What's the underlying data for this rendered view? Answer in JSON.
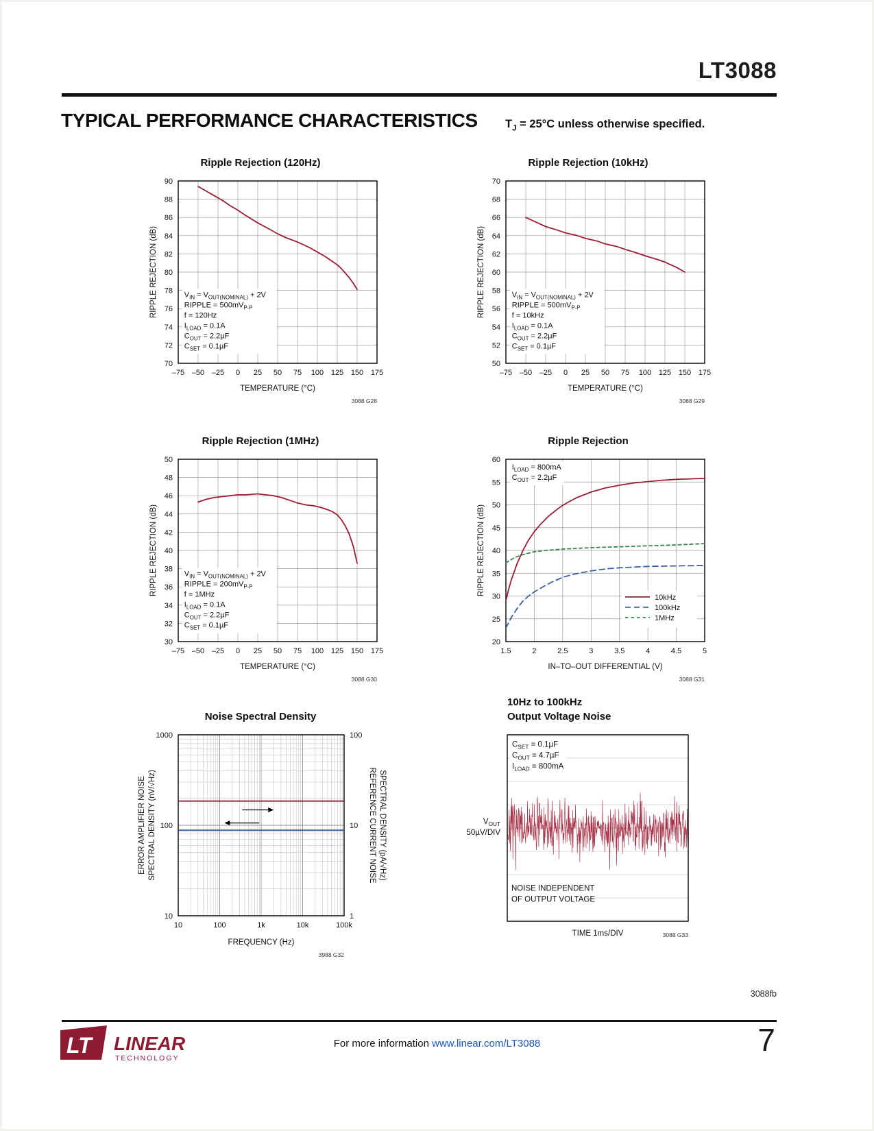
{
  "page": {
    "part_number": "LT3088",
    "section_title": "TYPICAL PERFORMANCE CHARACTERISTICS",
    "condition": "T_{J} = 25°C unless otherwise specified.",
    "doc_code": "3088fb",
    "page_number": "7",
    "footer_info_prefix": "For more information ",
    "footer_link": "www.linear.com/LT3088",
    "logo": {
      "mark": "LT",
      "brand": "LINEAR",
      "sub": "TECHNOLOGY",
      "color": "#8e1b32"
    }
  },
  "colors": {
    "curve_red": "#9d1b31",
    "curve_blue": "#3a5fa8",
    "curve_green": "#398449",
    "grid": "#9a9a9a",
    "link_blue": "#1558c0"
  },
  "chart_data": [
    {
      "type": "line",
      "id": "3088 G28",
      "title": "Ripple Rejection (120Hz)",
      "xlabel": "TEMPERATURE (°C)",
      "ylabel": "RIPPLE REJECTION (dB)",
      "xlim": [
        -75,
        175
      ],
      "ylim": [
        70,
        90
      ],
      "xticks": [
        -75,
        -50,
        -25,
        0,
        25,
        50,
        75,
        100,
        125,
        150,
        175
      ],
      "yticks": [
        70,
        72,
        74,
        76,
        78,
        80,
        82,
        84,
        86,
        88,
        90
      ],
      "annotation": {
        "fx": 0.02,
        "fy": 0.595,
        "lines": [
          "V_{IN} = V_{OUT(NOMINAL)} + 2V",
          "RIPPLE = 500mV_{P-P}",
          "f = 120Hz",
          "I_{LOAD} = 0.1A",
          "C_{OUT} = 2.2µF",
          "C_{SET} = 0.1µF"
        ]
      },
      "series": [
        {
          "name": "ripple rejection",
          "color": "#9d1b31",
          "dash": "",
          "points": [
            [
              -50,
              89.4
            ],
            [
              -40,
              88.9
            ],
            [
              -30,
              88.4
            ],
            [
              -20,
              87.9
            ],
            [
              -10,
              87.3
            ],
            [
              0,
              86.8
            ],
            [
              10,
              86.2
            ],
            [
              25,
              85.4
            ],
            [
              40,
              84.7
            ],
            [
              50,
              84.2
            ],
            [
              60,
              83.8
            ],
            [
              75,
              83.3
            ],
            [
              90,
              82.7
            ],
            [
              100,
              82.2
            ],
            [
              110,
              81.7
            ],
            [
              120,
              81.1
            ],
            [
              125,
              80.8
            ],
            [
              130,
              80.4
            ],
            [
              135,
              79.9
            ],
            [
              140,
              79.4
            ],
            [
              145,
              78.8
            ],
            [
              150,
              78.1
            ]
          ]
        }
      ]
    },
    {
      "type": "line",
      "id": "3088 G29",
      "title": "Ripple Rejection (10kHz)",
      "xlabel": "TEMPERATURE (°C)",
      "ylabel": "RIPPLE REJECTION (dB)",
      "xlim": [
        -75,
        175
      ],
      "ylim": [
        50,
        70
      ],
      "xticks": [
        -75,
        -50,
        -25,
        0,
        25,
        50,
        75,
        100,
        125,
        150,
        175
      ],
      "yticks": [
        50,
        52,
        54,
        56,
        58,
        60,
        62,
        64,
        66,
        68,
        70
      ],
      "annotation": {
        "fx": 0.02,
        "fy": 0.595,
        "lines": [
          "V_{IN} = V_{OUT(NOMINAL)} + 2V",
          "RIPPLE = 500mV_{P-P}",
          "f = 10kHz",
          "I_{LOAD} = 0.1A",
          "C_{OUT} = 2.2µF",
          "C_{SET} = 0.1µF"
        ]
      },
      "series": [
        {
          "name": "ripple rejection",
          "color": "#9d1b31",
          "dash": "",
          "points": [
            [
              -50,
              66.0
            ],
            [
              -35,
              65.4
            ],
            [
              -25,
              65.0
            ],
            [
              -10,
              64.6
            ],
            [
              0,
              64.3
            ],
            [
              15,
              64.0
            ],
            [
              25,
              63.7
            ],
            [
              40,
              63.4
            ],
            [
              50,
              63.1
            ],
            [
              65,
              62.8
            ],
            [
              75,
              62.5
            ],
            [
              90,
              62.1
            ],
            [
              100,
              61.8
            ],
            [
              115,
              61.4
            ],
            [
              125,
              61.1
            ],
            [
              140,
              60.5
            ],
            [
              150,
              60.0
            ]
          ]
        }
      ]
    },
    {
      "type": "line",
      "id": "3088 G30",
      "title": "Ripple Rejection (1MHz)",
      "xlabel": "TEMPERATURE (°C)",
      "ylabel": "RIPPLE REJECTION (dB)",
      "xlim": [
        -75,
        175
      ],
      "ylim": [
        30,
        50
      ],
      "xticks": [
        -75,
        -50,
        -25,
        0,
        25,
        50,
        75,
        100,
        125,
        150,
        175
      ],
      "yticks": [
        30,
        32,
        34,
        36,
        38,
        40,
        42,
        44,
        46,
        48,
        50
      ],
      "annotation": {
        "fx": 0.02,
        "fy": 0.6,
        "lines": [
          "V_{IN} = V_{OUT(NOMINAL)} + 2V",
          "RIPPLE = 200mV_{P-P}",
          "f = 1MHz",
          "I_{LOAD} = 0.1A",
          "C_{OUT} = 2.2µF",
          "C_{SET} = 0.1µF"
        ]
      },
      "series": [
        {
          "name": "ripple rejection",
          "color": "#9d1b31",
          "dash": "",
          "points": [
            [
              -50,
              45.3
            ],
            [
              -40,
              45.6
            ],
            [
              -30,
              45.8
            ],
            [
              -20,
              45.9
            ],
            [
              -10,
              46.0
            ],
            [
              0,
              46.1
            ],
            [
              10,
              46.1
            ],
            [
              25,
              46.2
            ],
            [
              35,
              46.1
            ],
            [
              45,
              46.0
            ],
            [
              55,
              45.8
            ],
            [
              65,
              45.5
            ],
            [
              75,
              45.2
            ],
            [
              85,
              45.0
            ],
            [
              95,
              44.9
            ],
            [
              105,
              44.7
            ],
            [
              115,
              44.4
            ],
            [
              120,
              44.2
            ],
            [
              125,
              43.9
            ],
            [
              130,
              43.4
            ],
            [
              135,
              42.7
            ],
            [
              140,
              41.8
            ],
            [
              145,
              40.5
            ],
            [
              150,
              38.6
            ]
          ]
        }
      ]
    },
    {
      "type": "line",
      "id": "3088 G31",
      "title": "Ripple Rejection",
      "xlabel": "IN–TO–OUT DIFFERENTIAL (V)",
      "ylabel": "RIPPLE REJECTION (dB)",
      "xlim": [
        1.5,
        5
      ],
      "ylim": [
        20,
        60
      ],
      "xticks": [
        1.5,
        2,
        2.5,
        3,
        3.5,
        4,
        4.5,
        5
      ],
      "yticks": [
        20,
        25,
        30,
        35,
        40,
        45,
        50,
        55,
        60
      ],
      "annotation": {
        "fx": 0.02,
        "fy": 0.015,
        "lines": [
          "I_{LOAD} = 800mA",
          "C_{OUT} = 2.2µF"
        ]
      },
      "legend": {
        "fx": 0.6,
        "fy": 0.74,
        "entries": [
          {
            "label": "10kHz",
            "color": "#9d1b31",
            "dash": ""
          },
          {
            "label": "100kHz",
            "color": "#3a5fa8",
            "dash": "8,5"
          },
          {
            "label": "1MHz",
            "color": "#398449",
            "dash": "4.5,4"
          }
        ]
      },
      "series": [
        {
          "name": "10kHz",
          "color": "#9d1b31",
          "dash": "",
          "points": [
            [
              1.5,
              29.0
            ],
            [
              1.55,
              31.5
            ],
            [
              1.6,
              33.7
            ],
            [
              1.7,
              37.2
            ],
            [
              1.8,
              40.0
            ],
            [
              1.9,
              42.3
            ],
            [
              2.0,
              44.1
            ],
            [
              2.1,
              45.6
            ],
            [
              2.25,
              47.5
            ],
            [
              2.4,
              49.0
            ],
            [
              2.5,
              49.9
            ],
            [
              2.6,
              50.6
            ],
            [
              2.75,
              51.6
            ],
            [
              3.0,
              52.8
            ],
            [
              3.25,
              53.7
            ],
            [
              3.5,
              54.3
            ],
            [
              3.75,
              54.8
            ],
            [
              4.0,
              55.1
            ],
            [
              4.25,
              55.4
            ],
            [
              4.5,
              55.6
            ],
            [
              4.75,
              55.7
            ],
            [
              5.0,
              55.8
            ]
          ]
        },
        {
          "name": "100kHz",
          "color": "#3a5fa8",
          "dash": "8,5",
          "points": [
            [
              1.5,
              23.0
            ],
            [
              1.6,
              25.4
            ],
            [
              1.7,
              27.3
            ],
            [
              1.8,
              28.9
            ],
            [
              1.9,
              30.0
            ],
            [
              2.0,
              30.9
            ],
            [
              2.15,
              32.0
            ],
            [
              2.3,
              33.0
            ],
            [
              2.5,
              34.1
            ],
            [
              2.7,
              34.8
            ],
            [
              3.0,
              35.5
            ],
            [
              3.3,
              36.0
            ],
            [
              3.5,
              36.2
            ],
            [
              4.0,
              36.5
            ],
            [
              4.5,
              36.6
            ],
            [
              5.0,
              36.7
            ]
          ]
        },
        {
          "name": "1MHz",
          "color": "#398449",
          "dash": "4.5,4",
          "points": [
            [
              1.5,
              37.3
            ],
            [
              1.65,
              38.4
            ],
            [
              1.8,
              39.1
            ],
            [
              2.0,
              39.7
            ],
            [
              2.2,
              40.0
            ],
            [
              2.5,
              40.3
            ],
            [
              3.0,
              40.6
            ],
            [
              3.5,
              40.8
            ],
            [
              4.0,
              41.0
            ],
            [
              4.5,
              41.2
            ],
            [
              5.0,
              41.5
            ]
          ]
        }
      ]
    },
    {
      "type": "loglog",
      "id": "3988 G32",
      "title": "Noise Spectral Density",
      "xlabel": "FREQUENCY (Hz)",
      "ylabel_left": "ERROR AMPLIFIER NOISE\nSPECTRAL DENSITY (nV/√Hz)",
      "ylabel_right": "REFERENCE CURRENT NOISE\nSPECTRAL DENSITY (pA/√Hz)",
      "xlim": [
        10,
        100000
      ],
      "ylim_left": [
        10,
        1000
      ],
      "ylim_right": [
        1,
        100
      ],
      "xtick_labels": [
        "10",
        "100",
        "1k",
        "10k",
        "100k"
      ],
      "ytick_labels_left": [
        "10",
        "100",
        "1000"
      ],
      "ytick_labels_right": [
        "1",
        "10",
        "100"
      ],
      "series": [
        {
          "name": "error amplifier noise",
          "color": "#9d1b31",
          "y": 185
        },
        {
          "name": "reference current noise",
          "color": "#3a5fa8",
          "y": 88
        }
      ],
      "arrows": [
        {
          "x1": 350,
          "x2": 2000,
          "y": 148,
          "dir": "right"
        },
        {
          "x1": 900,
          "x2": 130,
          "y": 106,
          "dir": "left"
        }
      ]
    },
    {
      "type": "scope",
      "id": "3088 G33",
      "title": "10Hz to 100kHz\nOutput Voltage Noise",
      "xlabel": "TIME 1ms/DIV",
      "left_label": "V_{OUT}\n50µV/DIV",
      "annotation": {
        "fx": 0.02,
        "fy": 0.02,
        "lines": [
          "C_{SET} = 0.1µF",
          "C_{OUT} = 4.7µF",
          "I_{LOAD} = 800mA"
        ]
      },
      "note": "NOISE INDEPENDENT\nOF OUTPUT VOLTAGE",
      "divisions": {
        "h": 10,
        "v": 8
      },
      "trace": {
        "color": "#a02036",
        "sigma_div": 0.55,
        "seed": 7
      }
    }
  ]
}
